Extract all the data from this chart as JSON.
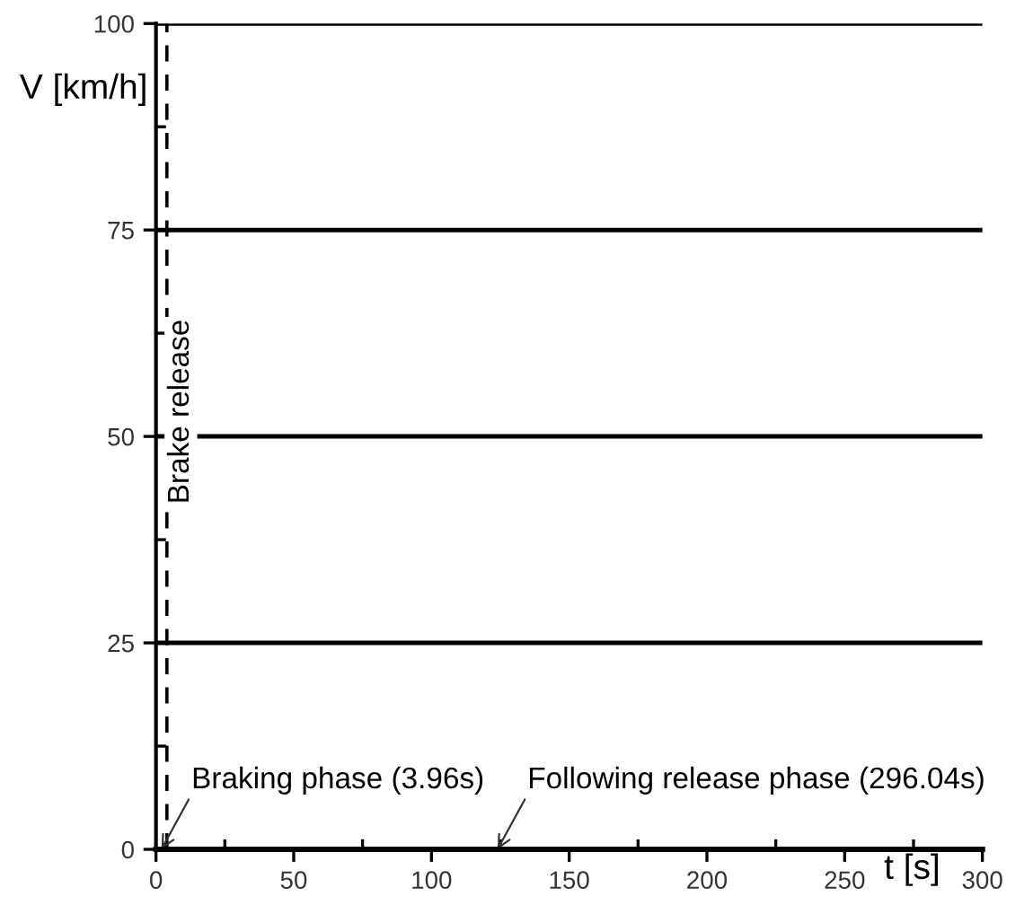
{
  "chart_data": {
    "type": "line",
    "xlabel": "t [s]",
    "ylabel": "V [km/h]",
    "series": [
      {
        "color": "#000000",
        "x": [
          0,
          300
        ],
        "values": [
          0,
          0
        ]
      }
    ],
    "xlim": [
      0,
      300
    ],
    "xticks": [
      0,
      50,
      100,
      150,
      200,
      250,
      300
    ],
    "ylim": [
      0,
      100
    ],
    "yticks": [
      0,
      25,
      50,
      75,
      100
    ],
    "grid": "y",
    "line_style": "solid",
    "ref_lines": [
      {
        "axis": "x",
        "value": 3.96,
        "label": "Brake release",
        "color": "#000000",
        "line_style": "dashed"
      }
    ],
    "annotations": [
      {
        "text": "Braking phase (3.96s)",
        "x": 2,
        "y": 0
      },
      {
        "text": "Following release phase (296.04s)",
        "x": 124,
        "y": 0
      }
    ]
  }
}
